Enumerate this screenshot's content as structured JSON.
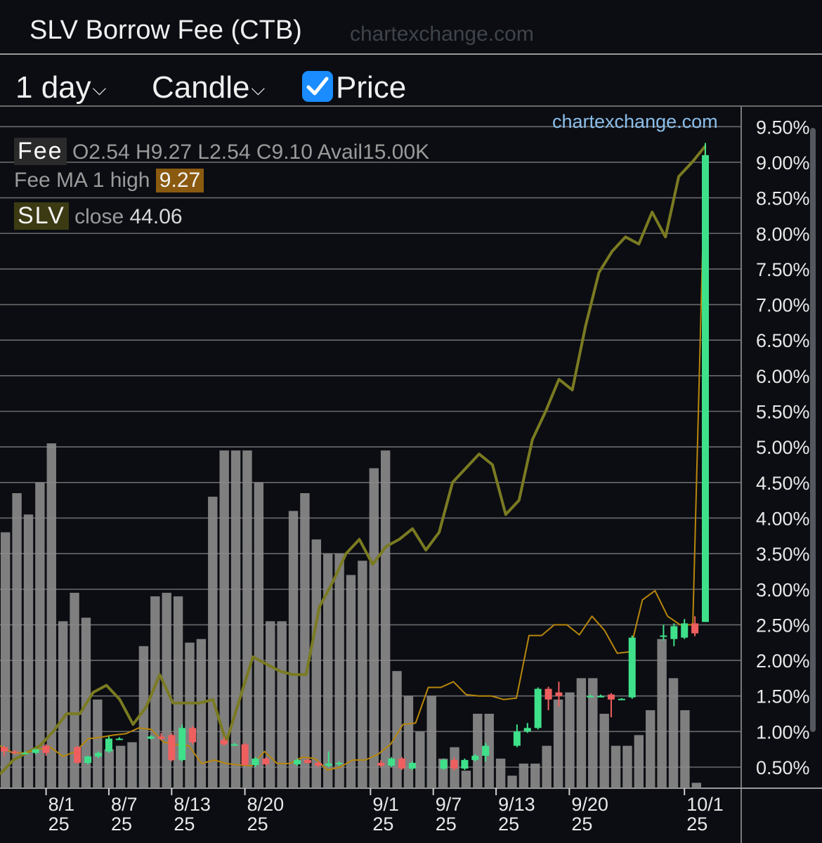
{
  "header": {
    "title": "SLV Borrow Fee (CTB)",
    "watermark": "chartexchange.com"
  },
  "toolbar": {
    "interval_label": "1 day",
    "style_label": "Candle",
    "price_label": "Price",
    "price_checked": true
  },
  "legend": {
    "fee_tag": "Fee",
    "o_label": "O",
    "o_value": "2.54",
    "h_label": "H",
    "h_value": "9.27",
    "l_label": "L",
    "l_value": "2.54",
    "c_label": "C",
    "c_value": "9.10",
    "avail_label": "Avail",
    "avail_value": "15.00K",
    "ma_label": "Fee MA 1 high",
    "ma_value": "9.27",
    "slv_tag": "SLV",
    "slv_label": "close",
    "slv_value": "44.06"
  },
  "chart_watermark": "chartexchange.com",
  "colors": {
    "background": "#0b0d12",
    "grid": "#8a8a8a",
    "up_candle": "#3fe08a",
    "down_candle": "#ef5f5f",
    "volume_bar": "#8c8c8c",
    "price_line": "#7a7a22",
    "ma_line": "#b8860b",
    "checkbox": "#1a8cff"
  },
  "chart_data": {
    "type": "candlestick",
    "y_axis": {
      "min": 0.25,
      "max": 9.75,
      "unit": "%",
      "tick_values": [
        0.5,
        1.0,
        1.5,
        2.0,
        2.5,
        3.0,
        3.5,
        4.0,
        4.5,
        5.0,
        5.5,
        6.0,
        6.5,
        7.0,
        7.5,
        8.0,
        8.5,
        9.0,
        9.5
      ],
      "tick_labels": [
        "0.50%",
        "1.00%",
        "1.50%",
        "2.00%",
        "2.50%",
        "3.00%",
        "3.50%",
        "4.00%",
        "4.50%",
        "5.00%",
        "5.50%",
        "6.00%",
        "6.50%",
        "7.00%",
        "7.50%",
        "8.00%",
        "8.50%",
        "9.00%",
        "9.50%"
      ]
    },
    "x_axis": {
      "start": "2025-07-28",
      "end": "2025-10-03",
      "ticks": [
        {
          "date": "2025-08-01",
          "line1": "8/1",
          "line2": "25"
        },
        {
          "date": "2025-08-07",
          "line1": "8/7",
          "line2": "25"
        },
        {
          "date": "2025-08-13",
          "line1": "8/13",
          "line2": "25"
        },
        {
          "date": "2025-08-20",
          "line1": "8/20",
          "line2": "25"
        },
        {
          "date": "2025-09-01",
          "line1": "9/1",
          "line2": "25"
        },
        {
          "date": "2025-09-07",
          "line1": "9/7",
          "line2": "25"
        },
        {
          "date": "2025-09-13",
          "line1": "9/13",
          "line2": "25"
        },
        {
          "date": "2025-09-20",
          "line1": "9/20",
          "line2": "25"
        },
        {
          "date": "2025-10-01",
          "line1": "10/1",
          "line2": "25"
        }
      ]
    },
    "grid": true,
    "candles": [
      {
        "date": "2025-07-28",
        "o": 0.78,
        "h": 0.8,
        "l": 0.65,
        "c": 0.72
      },
      {
        "date": "2025-07-29",
        "o": 0.72,
        "h": 0.74,
        "l": 0.68,
        "c": 0.7
      },
      {
        "date": "2025-07-30",
        "o": 0.7,
        "h": 0.72,
        "l": 0.68,
        "c": 0.7
      },
      {
        "date": "2025-07-31",
        "o": 0.7,
        "h": 0.76,
        "l": 0.68,
        "c": 0.75
      },
      {
        "date": "2025-08-01",
        "o": 0.8,
        "h": 0.82,
        "l": 0.66,
        "c": 0.7
      },
      {
        "date": "2025-08-04",
        "o": 0.78,
        "h": 0.8,
        "l": 0.55,
        "c": 0.56
      },
      {
        "date": "2025-08-05",
        "o": 0.56,
        "h": 0.66,
        "l": 0.54,
        "c": 0.65
      },
      {
        "date": "2025-08-06",
        "o": 0.65,
        "h": 0.72,
        "l": 0.63,
        "c": 0.7
      },
      {
        "date": "2025-08-07",
        "o": 0.72,
        "h": 0.93,
        "l": 0.7,
        "c": 0.9
      },
      {
        "date": "2025-08-08",
        "o": 0.9,
        "h": 0.92,
        "l": 0.88,
        "c": 0.9
      },
      {
        "date": "2025-08-11",
        "o": 0.9,
        "h": 0.95,
        "l": 0.89,
        "c": 0.93
      },
      {
        "date": "2025-08-12",
        "o": 0.93,
        "h": 0.98,
        "l": 0.88,
        "c": 0.9
      },
      {
        "date": "2025-08-13",
        "o": 0.95,
        "h": 0.98,
        "l": 0.58,
        "c": 0.6
      },
      {
        "date": "2025-08-14",
        "o": 0.6,
        "h": 1.1,
        "l": 0.58,
        "c": 1.05
      },
      {
        "date": "2025-08-15",
        "o": 1.05,
        "h": 1.08,
        "l": 0.82,
        "c": 0.85
      },
      {
        "date": "2025-08-18",
        "o": 0.88,
        "h": 0.92,
        "l": 0.8,
        "c": 0.82
      },
      {
        "date": "2025-08-19",
        "o": 0.82,
        "h": 0.84,
        "l": 0.8,
        "c": 0.82
      },
      {
        "date": "2025-08-20",
        "o": 0.82,
        "h": 0.84,
        "l": 0.52,
        "c": 0.53
      },
      {
        "date": "2025-08-21",
        "o": 0.53,
        "h": 0.64,
        "l": 0.5,
        "c": 0.62
      },
      {
        "date": "2025-08-22",
        "o": 0.62,
        "h": 0.64,
        "l": 0.52,
        "c": 0.54
      },
      {
        "date": "2025-08-25",
        "o": 0.54,
        "h": 0.62,
        "l": 0.52,
        "c": 0.6
      },
      {
        "date": "2025-08-26",
        "o": 0.6,
        "h": 0.62,
        "l": 0.55,
        "c": 0.56
      },
      {
        "date": "2025-08-27",
        "o": 0.56,
        "h": 0.58,
        "l": 0.5,
        "c": 0.52
      },
      {
        "date": "2025-08-28",
        "o": 0.52,
        "h": 0.72,
        "l": 0.5,
        "c": 0.55
      },
      {
        "date": "2025-08-29",
        "o": 0.55,
        "h": 0.58,
        "l": 0.52,
        "c": 0.56
      },
      {
        "date": "2025-09-02",
        "o": 0.56,
        "h": 0.6,
        "l": 0.5,
        "c": 0.52
      },
      {
        "date": "2025-09-03",
        "o": 0.52,
        "h": 0.64,
        "l": 0.5,
        "c": 0.62
      },
      {
        "date": "2025-09-04",
        "o": 0.62,
        "h": 0.64,
        "l": 0.46,
        "c": 0.48
      },
      {
        "date": "2025-09-05",
        "o": 0.48,
        "h": 0.58,
        "l": 0.46,
        "c": 0.56
      },
      {
        "date": "2025-09-08",
        "o": 0.48,
        "h": 0.62,
        "l": 0.46,
        "c": 0.6
      },
      {
        "date": "2025-09-09",
        "o": 0.6,
        "h": 0.64,
        "l": 0.45,
        "c": 0.48
      },
      {
        "date": "2025-09-10",
        "o": 0.48,
        "h": 0.62,
        "l": 0.46,
        "c": 0.6
      },
      {
        "date": "2025-09-11",
        "o": 0.6,
        "h": 0.68,
        "l": 0.58,
        "c": 0.66
      },
      {
        "date": "2025-09-12",
        "o": 0.66,
        "h": 0.84,
        "l": 0.58,
        "c": 0.8
      },
      {
        "date": "2025-09-15",
        "o": 0.8,
        "h": 1.1,
        "l": 0.78,
        "c": 1.0
      },
      {
        "date": "2025-09-16",
        "o": 1.0,
        "h": 1.12,
        "l": 0.98,
        "c": 1.05
      },
      {
        "date": "2025-09-17",
        "o": 1.05,
        "h": 1.62,
        "l": 1.03,
        "c": 1.6
      },
      {
        "date": "2025-09-18",
        "o": 1.6,
        "h": 1.63,
        "l": 1.3,
        "c": 1.45
      },
      {
        "date": "2025-09-19",
        "o": 1.55,
        "h": 1.7,
        "l": 1.35,
        "c": 1.5
      },
      {
        "date": "2025-09-22",
        "o": 1.5,
        "h": 1.52,
        "l": 1.48,
        "c": 1.5
      },
      {
        "date": "2025-09-23",
        "o": 1.5,
        "h": 1.52,
        "l": 1.48,
        "c": 1.5
      },
      {
        "date": "2025-09-24",
        "o": 1.52,
        "h": 1.54,
        "l": 1.2,
        "c": 1.45
      },
      {
        "date": "2025-09-25",
        "o": 1.45,
        "h": 1.47,
        "l": 1.45,
        "c": 1.46
      },
      {
        "date": "2025-09-26",
        "o": 1.48,
        "h": 2.35,
        "l": 1.46,
        "c": 2.32
      },
      {
        "date": "2025-09-29",
        "o": 2.33,
        "h": 2.5,
        "l": 2.28,
        "c": 2.35
      },
      {
        "date": "2025-09-30",
        "o": 2.3,
        "h": 2.52,
        "l": 2.2,
        "c": 2.48
      },
      {
        "date": "2025-10-01",
        "o": 2.32,
        "h": 2.58,
        "l": 2.3,
        "c": 2.52
      },
      {
        "date": "2025-10-02",
        "o": 2.52,
        "h": 2.62,
        "l": 2.34,
        "c": 2.38
      },
      {
        "date": "2025-10-03",
        "o": 2.54,
        "h": 9.27,
        "l": 2.54,
        "c": 9.1
      }
    ],
    "volume_bars": [
      3.8,
      4.35,
      4.05,
      4.5,
      5.05,
      2.55,
      2.95,
      2.6,
      1.45,
      0.75,
      0.8,
      0.85,
      2.2,
      2.9,
      2.95,
      2.9,
      2.25,
      2.3,
      4.3,
      4.95,
      4.95,
      4.95,
      4.5,
      2.55,
      2.55,
      4.1,
      4.35,
      3.7,
      3.5,
      3.5,
      3.2,
      3.4,
      4.7,
      4.95,
      1.85,
      1.5,
      1.0,
      1.5,
      0.62,
      0.78,
      0.45,
      1.25,
      1.25,
      0.62,
      0.38,
      0.55,
      0.55,
      0.8,
      1.45,
      1.55,
      1.75,
      1.75,
      1.25,
      0.8,
      0.8,
      0.95,
      1.3,
      2.3,
      1.75,
      1.3,
      0.28
    ],
    "price_line_y": [
      0.4,
      0.6,
      0.7,
      0.8,
      1.0,
      1.25,
      1.25,
      1.55,
      1.65,
      1.45,
      1.1,
      1.35,
      1.8,
      1.4,
      1.4,
      1.4,
      1.45,
      0.85,
      1.45,
      2.05,
      1.95,
      1.85,
      1.8,
      1.8,
      2.75,
      3.1,
      3.5,
      3.7,
      3.35,
      3.6,
      3.7,
      3.85,
      3.55,
      3.8,
      4.5,
      4.7,
      4.9,
      4.75,
      4.05,
      4.25,
      5.1,
      5.5,
      5.95,
      5.8,
      6.7,
      7.45,
      7.75,
      7.95,
      7.85,
      8.3,
      7.95,
      8.8,
      9.0,
      9.23
    ],
    "ma_line_y": [
      0.8,
      0.7,
      0.7,
      0.75,
      0.78,
      0.65,
      0.72,
      0.9,
      0.92,
      0.95,
      0.97,
      1.05,
      1.03,
      0.85,
      0.82,
      0.8,
      0.55,
      0.6,
      0.55,
      0.53,
      0.52,
      0.72,
      0.55,
      0.55,
      0.64,
      0.62,
      0.46,
      0.5,
      0.6,
      0.6,
      0.68,
      0.82,
      1.1,
      1.12,
      1.62,
      1.62,
      1.7,
      1.52,
      1.5,
      1.5,
      1.45,
      1.47,
      2.35,
      2.35,
      2.5,
      2.5,
      2.36,
      2.62,
      2.42,
      2.1,
      2.12,
      2.85,
      2.98,
      2.62,
      2.5,
      2.5,
      9.27
    ]
  }
}
